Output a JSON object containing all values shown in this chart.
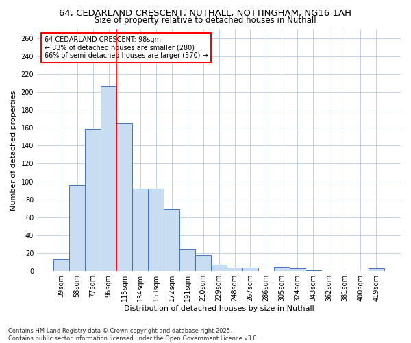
{
  "title_line1": "64, CEDARLAND CRESCENT, NUTHALL, NOTTINGHAM, NG16 1AH",
  "title_line2": "Size of property relative to detached houses in Nuthall",
  "xlabel": "Distribution of detached houses by size in Nuthall",
  "ylabel": "Number of detached properties",
  "categories": [
    "39sqm",
    "58sqm",
    "77sqm",
    "96sqm",
    "115sqm",
    "134sqm",
    "153sqm",
    "172sqm",
    "191sqm",
    "210sqm",
    "229sqm",
    "248sqm",
    "267sqm",
    "286sqm",
    "305sqm",
    "324sqm",
    "343sqm",
    "362sqm",
    "381sqm",
    "400sqm",
    "419sqm"
  ],
  "values": [
    13,
    96,
    159,
    206,
    165,
    92,
    92,
    69,
    25,
    18,
    7,
    4,
    4,
    0,
    5,
    3,
    1,
    0,
    0,
    0,
    3
  ],
  "bar_color": "#c9ddf2",
  "bar_edge_color": "#4472c4",
  "red_line_index": 3,
  "annotation_text": "64 CEDARLAND CRESCENT: 98sqm\n← 33% of detached houses are smaller (280)\n66% of semi-detached houses are larger (570) →",
  "annotation_box_facecolor": "white",
  "annotation_box_edgecolor": "red",
  "ylim": [
    0,
    270
  ],
  "yticks": [
    0,
    20,
    40,
    60,
    80,
    100,
    120,
    140,
    160,
    180,
    200,
    220,
    240,
    260
  ],
  "grid_color": "#b8cce4",
  "background_color": "white",
  "footer_line1": "Contains HM Land Registry data © Crown copyright and database right 2025.",
  "footer_line2": "Contains public sector information licensed under the Open Government Licence v3.0.",
  "title_fontsize": 9.5,
  "subtitle_fontsize": 8.5,
  "axis_label_fontsize": 8,
  "tick_fontsize": 7,
  "annotation_fontsize": 7,
  "footer_fontsize": 6
}
